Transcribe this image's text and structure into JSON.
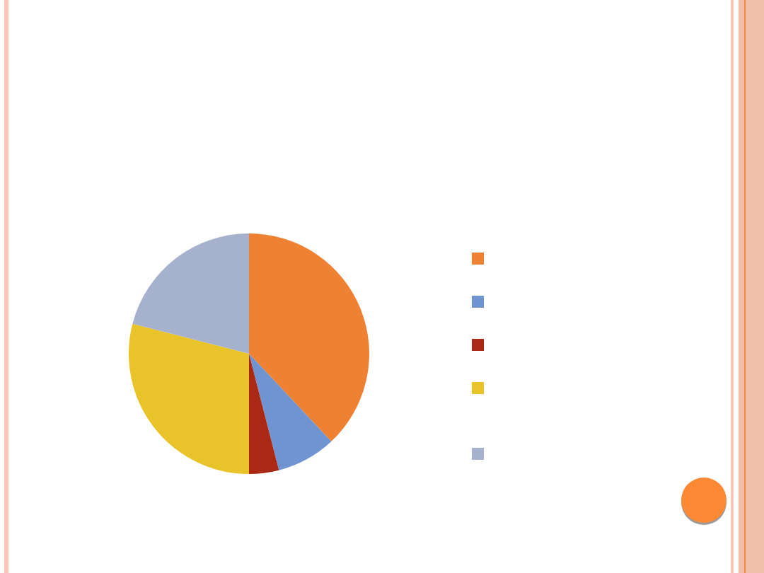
{
  "chart_data": {
    "type": "pie",
    "categories": [
      null,
      null,
      null,
      null,
      null
    ],
    "values": [
      38,
      8,
      4,
      29,
      21
    ],
    "colors": [
      "#ef8133",
      "#7094d2",
      "#a92914",
      "#e8c32a",
      "#a6b2cd"
    ]
  }
}
